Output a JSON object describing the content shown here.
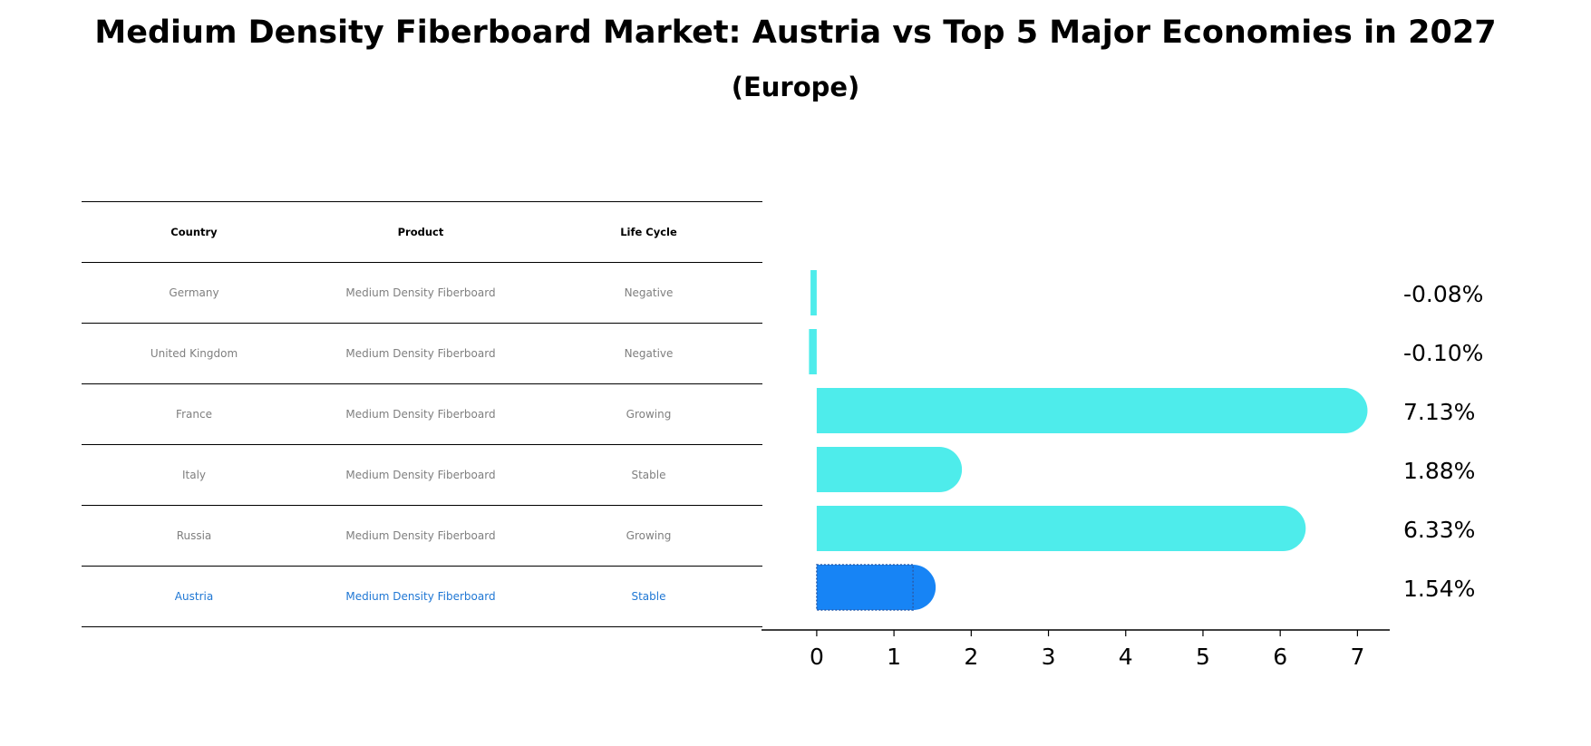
{
  "title": "Medium Density Fiberboard Market: Austria vs Top 5 Major Economies in 2027",
  "subtitle": "(Europe)",
  "colors": {
    "bar": "#4eeceb",
    "highlight_bar": "#1784f5",
    "highlight_text": "#1f77d4",
    "row_text": "#7f7f7f",
    "axis": "#000000"
  },
  "table": {
    "headers": [
      "Country",
      "Product",
      "Life Cycle"
    ],
    "rows": [
      {
        "country": "Germany",
        "product": "Medium Density Fiberboard",
        "life_cycle": "Negative"
      },
      {
        "country": "United Kingdom",
        "product": "Medium Density Fiberboard",
        "life_cycle": "Negative"
      },
      {
        "country": "France",
        "product": "Medium Density Fiberboard",
        "life_cycle": "Growing"
      },
      {
        "country": "Italy",
        "product": "Medium Density Fiberboard",
        "life_cycle": "Stable"
      },
      {
        "country": "Russia",
        "product": "Medium Density Fiberboard",
        "life_cycle": "Growing"
      },
      {
        "country": "Austria",
        "product": "Medium Density Fiberboard",
        "life_cycle": "Stable"
      }
    ]
  },
  "chart_data": {
    "type": "bar",
    "orientation": "horizontal",
    "title": "Medium Density Fiberboard Market: Austria vs Top 5 Major Economies in 2027",
    "subtitle": "(Europe)",
    "categories": [
      "Germany",
      "United Kingdom",
      "France",
      "Italy",
      "Russia",
      "Austria"
    ],
    "values": [
      -0.08,
      -0.1,
      7.13,
      1.88,
      6.33,
      1.54
    ],
    "value_labels": [
      "-0.08%",
      "-0.10%",
      "7.13%",
      "1.88%",
      "6.33%",
      "1.54%"
    ],
    "highlight_category": "Austria",
    "xlim": [
      -0.48,
      7.5
    ],
    "xticks": [
      0,
      1,
      2,
      3,
      4,
      5,
      6,
      7
    ],
    "xlabel": "",
    "ylabel": "",
    "grid": false
  }
}
